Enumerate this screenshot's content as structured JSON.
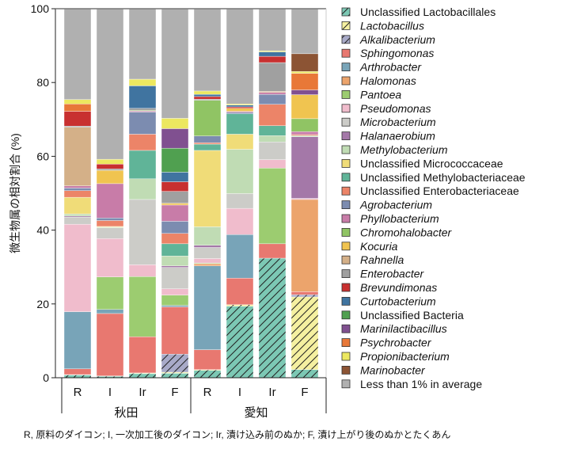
{
  "chart_data": {
    "type": "bar",
    "stacked": true,
    "ylabel": "微生物属の相対割合 (%)",
    "ylim": [
      0,
      100
    ],
    "yticks": [
      "0",
      "20",
      "40",
      "60",
      "80",
      "100"
    ],
    "categories": [
      "R",
      "I",
      "Ir",
      "F",
      "R",
      "I",
      "Ir",
      "F"
    ],
    "groups": [
      {
        "label": "秋田",
        "size": 4
      },
      {
        "label": "愛知",
        "size": 4
      }
    ],
    "legend_position": "right",
    "caption": "R, 原料のダイコン; I, 一次加工後のダイコン; Ir, 漬け込み前のぬか; F, 漬け上がり後のぬかとたくあん",
    "series": [
      {
        "name": "Unclassified Lactobacillales",
        "color": "#7cc8b4",
        "hatch": true,
        "italic": false,
        "values": [
          0.75,
          0.4,
          1.1,
          1.2,
          2.0,
          19.4,
          32.4,
          2.2
        ]
      },
      {
        "name": "Lactobacillus",
        "color": "#f5f0a0",
        "hatch": true,
        "italic": true,
        "values": [
          0.1,
          0.1,
          0.2,
          0.3,
          0.2,
          0.4,
          0,
          19.7
        ]
      },
      {
        "name": "Alkalibacterium",
        "color": "#a8aac8",
        "hatch": true,
        "italic": true,
        "values": [
          0,
          0,
          0,
          4.9,
          0,
          0,
          0,
          0.6
        ]
      },
      {
        "name": "Sphingomonas",
        "color": "#e87870",
        "italic": true,
        "values": [
          1.55,
          16.9,
          9.8,
          12.8,
          5.4,
          7.2,
          3.9,
          0.8
        ]
      },
      {
        "name": "Arthrobacter",
        "color": "#78a4b8",
        "italic": true,
        "values": [
          15.5,
          1.1,
          0,
          0.4,
          22.7,
          11.8,
          0,
          0
        ]
      },
      {
        "name": "Halomonas",
        "color": "#eca46c",
        "italic": true,
        "values": [
          0,
          0,
          0,
          0,
          0.6,
          0,
          0,
          25.0
        ]
      },
      {
        "name": "Pantoea",
        "color": "#9ccc70",
        "italic": true,
        "values": [
          0,
          8.8,
          16.3,
          2.8,
          0.2,
          0,
          20.5,
          0
        ]
      },
      {
        "name": "Pseudomonas",
        "color": "#f0bccc",
        "italic": true,
        "values": [
          23.7,
          10.4,
          3.2,
          1.7,
          1.2,
          7.1,
          2.3,
          0.3
        ]
      },
      {
        "name": "Microbacterium",
        "color": "#ccccc8",
        "italic": true,
        "values": [
          1.9,
          2.9,
          17.7,
          5.8,
          3.0,
          4.0,
          4.8,
          0
        ]
      },
      {
        "name": "Halanaerobium",
        "color": "#a478a8",
        "italic": true,
        "values": [
          0.3,
          0,
          0,
          0.4,
          0.6,
          0,
          0,
          16.7
        ]
      },
      {
        "name": "Methylobacterium",
        "color": "#c0dcb4",
        "italic": true,
        "values": [
          0.6,
          0.2,
          5.6,
          2.7,
          5.0,
          12.0,
          1.7,
          0.3
        ]
      },
      {
        "name": "Unclassified Micrococcaceae",
        "color": "#f0dc78",
        "italic": false,
        "values": [
          4.5,
          0.2,
          0,
          0,
          20.7,
          4.1,
          0,
          0
        ]
      },
      {
        "name": "Unclassified Methylobacteriaceae",
        "color": "#60b498",
        "italic": false,
        "values": [
          0,
          0,
          7.7,
          3.3,
          1.7,
          5.5,
          2.7,
          0
        ]
      },
      {
        "name": "Unclassified Enterobacteriaceae",
        "color": "#ec8468",
        "italic": false,
        "values": [
          1.8,
          1.6,
          4.4,
          2.8,
          0.4,
          0,
          5.8,
          0.3
        ]
      },
      {
        "name": "Agrobacterium",
        "color": "#7c8cb0",
        "italic": true,
        "values": [
          0.7,
          0.7,
          6.0,
          3.3,
          1.8,
          0.4,
          2.7,
          0
        ]
      },
      {
        "name": "Phyllobacterium",
        "color": "#c87ca8",
        "italic": true,
        "values": [
          0.6,
          9.3,
          0.3,
          4.4,
          0,
          0.3,
          0.5,
          0.8
        ]
      },
      {
        "name": "Chromohalobacter",
        "color": "#90c464",
        "italic": true,
        "values": [
          0,
          0,
          0.2,
          0,
          9.7,
          0,
          0,
          3.5
        ]
      },
      {
        "name": "Kocuria",
        "color": "#f0c450",
        "italic": true,
        "values": [
          0,
          3.6,
          0,
          0.5,
          0,
          0.8,
          0,
          6.5
        ]
      },
      {
        "name": "Rahnella",
        "color": "#d4b088",
        "italic": true,
        "values": [
          15.9,
          0,
          0,
          0,
          0,
          0,
          0.3,
          0
        ]
      },
      {
        "name": "Enterobacter",
        "color": "#a0a0a0",
        "italic": true,
        "values": [
          0.3,
          0.4,
          0.5,
          3.2,
          0.3,
          0,
          7.8,
          0
        ]
      },
      {
        "name": "Brevundimonas",
        "color": "#c83030",
        "italic": true,
        "values": [
          4.0,
          1.3,
          0,
          2.6,
          0.7,
          0.4,
          1.7,
          0
        ]
      },
      {
        "name": "Curtobacterium",
        "color": "#4074a0",
        "italic": true,
        "values": [
          0,
          0,
          6.1,
          2.6,
          0.6,
          0.5,
          1.2,
          0
        ]
      },
      {
        "name": "Unclassified Bacteria",
        "color": "#50a050",
        "italic": false,
        "values": [
          0,
          0,
          0,
          6.5,
          0,
          0,
          0,
          0
        ]
      },
      {
        "name": "Marinilactibacillus",
        "color": "#805090",
        "italic": true,
        "values": [
          0,
          0,
          0,
          5.3,
          0,
          0,
          0,
          1.3
        ]
      },
      {
        "name": "Psychrobacter",
        "color": "#e87838",
        "italic": true,
        "values": [
          2.0,
          0,
          0,
          0,
          0,
          0,
          0,
          4.5
        ]
      },
      {
        "name": "Propionibacterium",
        "color": "#ece860",
        "italic": true,
        "values": [
          1.2,
          1.3,
          1.8,
          2.8,
          0.9,
          0.3,
          0.3,
          0.5
        ]
      },
      {
        "name": "Marinobacter",
        "color": "#8c5434",
        "italic": true,
        "values": [
          0,
          0,
          0,
          0,
          0,
          0,
          0,
          4.8
        ]
      },
      {
        "name": "Less than 1% in average",
        "color": "#b0b0b0",
        "italic": false,
        "values": [
          24.6,
          40.8,
          19.1,
          29.7,
          22.3,
          25.8,
          11.4,
          12.2
        ]
      }
    ]
  }
}
